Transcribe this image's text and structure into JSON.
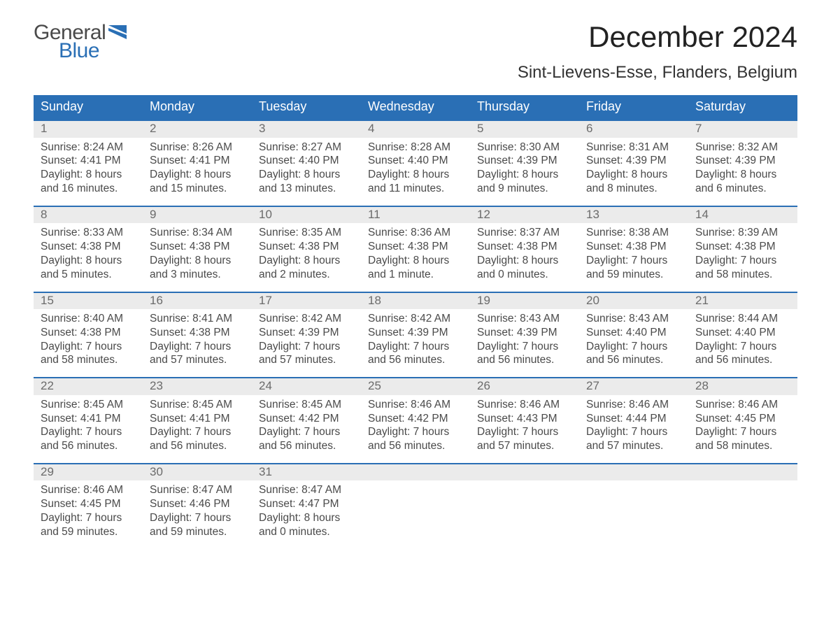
{
  "brand": {
    "general": "General",
    "blue": "Blue",
    "flag_color": "#2a6fb5"
  },
  "title": "December 2024",
  "location": "Sint-Lievens-Esse, Flanders, Belgium",
  "colors": {
    "header_bg": "#2a6fb5",
    "daynum_bg": "#ebebeb",
    "text": "#4a4a4a",
    "title_text": "#222222"
  },
  "weekdays": [
    "Sunday",
    "Monday",
    "Tuesday",
    "Wednesday",
    "Thursday",
    "Friday",
    "Saturday"
  ],
  "weeks": [
    [
      {
        "n": "1",
        "sunrise": "Sunrise: 8:24 AM",
        "sunset": "Sunset: 4:41 PM",
        "daylight": "Daylight: 8 hours and 16 minutes."
      },
      {
        "n": "2",
        "sunrise": "Sunrise: 8:26 AM",
        "sunset": "Sunset: 4:41 PM",
        "daylight": "Daylight: 8 hours and 15 minutes."
      },
      {
        "n": "3",
        "sunrise": "Sunrise: 8:27 AM",
        "sunset": "Sunset: 4:40 PM",
        "daylight": "Daylight: 8 hours and 13 minutes."
      },
      {
        "n": "4",
        "sunrise": "Sunrise: 8:28 AM",
        "sunset": "Sunset: 4:40 PM",
        "daylight": "Daylight: 8 hours and 11 minutes."
      },
      {
        "n": "5",
        "sunrise": "Sunrise: 8:30 AM",
        "sunset": "Sunset: 4:39 PM",
        "daylight": "Daylight: 8 hours and 9 minutes."
      },
      {
        "n": "6",
        "sunrise": "Sunrise: 8:31 AM",
        "sunset": "Sunset: 4:39 PM",
        "daylight": "Daylight: 8 hours and 8 minutes."
      },
      {
        "n": "7",
        "sunrise": "Sunrise: 8:32 AM",
        "sunset": "Sunset: 4:39 PM",
        "daylight": "Daylight: 8 hours and 6 minutes."
      }
    ],
    [
      {
        "n": "8",
        "sunrise": "Sunrise: 8:33 AM",
        "sunset": "Sunset: 4:38 PM",
        "daylight": "Daylight: 8 hours and 5 minutes."
      },
      {
        "n": "9",
        "sunrise": "Sunrise: 8:34 AM",
        "sunset": "Sunset: 4:38 PM",
        "daylight": "Daylight: 8 hours and 3 minutes."
      },
      {
        "n": "10",
        "sunrise": "Sunrise: 8:35 AM",
        "sunset": "Sunset: 4:38 PM",
        "daylight": "Daylight: 8 hours and 2 minutes."
      },
      {
        "n": "11",
        "sunrise": "Sunrise: 8:36 AM",
        "sunset": "Sunset: 4:38 PM",
        "daylight": "Daylight: 8 hours and 1 minute."
      },
      {
        "n": "12",
        "sunrise": "Sunrise: 8:37 AM",
        "sunset": "Sunset: 4:38 PM",
        "daylight": "Daylight: 8 hours and 0 minutes."
      },
      {
        "n": "13",
        "sunrise": "Sunrise: 8:38 AM",
        "sunset": "Sunset: 4:38 PM",
        "daylight": "Daylight: 7 hours and 59 minutes."
      },
      {
        "n": "14",
        "sunrise": "Sunrise: 8:39 AM",
        "sunset": "Sunset: 4:38 PM",
        "daylight": "Daylight: 7 hours and 58 minutes."
      }
    ],
    [
      {
        "n": "15",
        "sunrise": "Sunrise: 8:40 AM",
        "sunset": "Sunset: 4:38 PM",
        "daylight": "Daylight: 7 hours and 58 minutes."
      },
      {
        "n": "16",
        "sunrise": "Sunrise: 8:41 AM",
        "sunset": "Sunset: 4:38 PM",
        "daylight": "Daylight: 7 hours and 57 minutes."
      },
      {
        "n": "17",
        "sunrise": "Sunrise: 8:42 AM",
        "sunset": "Sunset: 4:39 PM",
        "daylight": "Daylight: 7 hours and 57 minutes."
      },
      {
        "n": "18",
        "sunrise": "Sunrise: 8:42 AM",
        "sunset": "Sunset: 4:39 PM",
        "daylight": "Daylight: 7 hours and 56 minutes."
      },
      {
        "n": "19",
        "sunrise": "Sunrise: 8:43 AM",
        "sunset": "Sunset: 4:39 PM",
        "daylight": "Daylight: 7 hours and 56 minutes."
      },
      {
        "n": "20",
        "sunrise": "Sunrise: 8:43 AM",
        "sunset": "Sunset: 4:40 PM",
        "daylight": "Daylight: 7 hours and 56 minutes."
      },
      {
        "n": "21",
        "sunrise": "Sunrise: 8:44 AM",
        "sunset": "Sunset: 4:40 PM",
        "daylight": "Daylight: 7 hours and 56 minutes."
      }
    ],
    [
      {
        "n": "22",
        "sunrise": "Sunrise: 8:45 AM",
        "sunset": "Sunset: 4:41 PM",
        "daylight": "Daylight: 7 hours and 56 minutes."
      },
      {
        "n": "23",
        "sunrise": "Sunrise: 8:45 AM",
        "sunset": "Sunset: 4:41 PM",
        "daylight": "Daylight: 7 hours and 56 minutes."
      },
      {
        "n": "24",
        "sunrise": "Sunrise: 8:45 AM",
        "sunset": "Sunset: 4:42 PM",
        "daylight": "Daylight: 7 hours and 56 minutes."
      },
      {
        "n": "25",
        "sunrise": "Sunrise: 8:46 AM",
        "sunset": "Sunset: 4:42 PM",
        "daylight": "Daylight: 7 hours and 56 minutes."
      },
      {
        "n": "26",
        "sunrise": "Sunrise: 8:46 AM",
        "sunset": "Sunset: 4:43 PM",
        "daylight": "Daylight: 7 hours and 57 minutes."
      },
      {
        "n": "27",
        "sunrise": "Sunrise: 8:46 AM",
        "sunset": "Sunset: 4:44 PM",
        "daylight": "Daylight: 7 hours and 57 minutes."
      },
      {
        "n": "28",
        "sunrise": "Sunrise: 8:46 AM",
        "sunset": "Sunset: 4:45 PM",
        "daylight": "Daylight: 7 hours and 58 minutes."
      }
    ],
    [
      {
        "n": "29",
        "sunrise": "Sunrise: 8:46 AM",
        "sunset": "Sunset: 4:45 PM",
        "daylight": "Daylight: 7 hours and 59 minutes."
      },
      {
        "n": "30",
        "sunrise": "Sunrise: 8:47 AM",
        "sunset": "Sunset: 4:46 PM",
        "daylight": "Daylight: 7 hours and 59 minutes."
      },
      {
        "n": "31",
        "sunrise": "Sunrise: 8:47 AM",
        "sunset": "Sunset: 4:47 PM",
        "daylight": "Daylight: 8 hours and 0 minutes."
      },
      {
        "n": "",
        "sunrise": "",
        "sunset": "",
        "daylight": "",
        "empty": true
      },
      {
        "n": "",
        "sunrise": "",
        "sunset": "",
        "daylight": "",
        "empty": true
      },
      {
        "n": "",
        "sunrise": "",
        "sunset": "",
        "daylight": "",
        "empty": true
      },
      {
        "n": "",
        "sunrise": "",
        "sunset": "",
        "daylight": "",
        "empty": true
      }
    ]
  ]
}
